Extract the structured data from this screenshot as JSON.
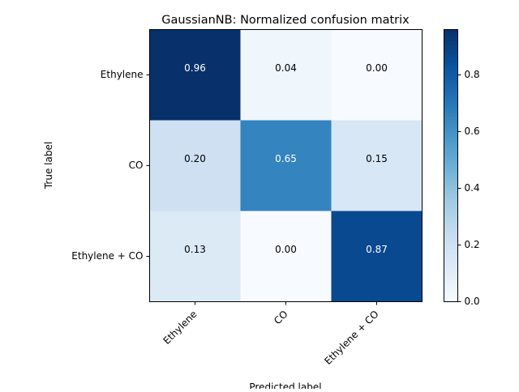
{
  "chart_data": {
    "type": "heatmap",
    "title": "GaussianNB: Normalized confusion matrix",
    "xlabel": "Predicted label",
    "ylabel": "True label",
    "x_categories": [
      "Ethylene",
      "CO",
      "Ethylene + CO"
    ],
    "y_categories": [
      "Ethylene",
      "CO",
      "Ethylene + CO"
    ],
    "values": [
      [
        0.96,
        0.04,
        0.0
      ],
      [
        0.2,
        0.65,
        0.15
      ],
      [
        0.13,
        0.0,
        0.87
      ]
    ],
    "cell_labels": [
      [
        "0.96",
        "0.04",
        "0.00"
      ],
      [
        "0.20",
        "0.65",
        "0.15"
      ],
      [
        "0.13",
        "0.00",
        "0.87"
      ]
    ],
    "colormap": "Blues",
    "vmin": 0.0,
    "vmax": 0.96,
    "colorbar_ticks": [
      0.0,
      0.2,
      0.4,
      0.6,
      0.8
    ],
    "colorbar_tick_labels": [
      "0.0",
      "0.2",
      "0.4",
      "0.6",
      "0.8"
    ],
    "text_color_light": "#ffffff",
    "text_color_dark": "#000000",
    "grid": false
  }
}
